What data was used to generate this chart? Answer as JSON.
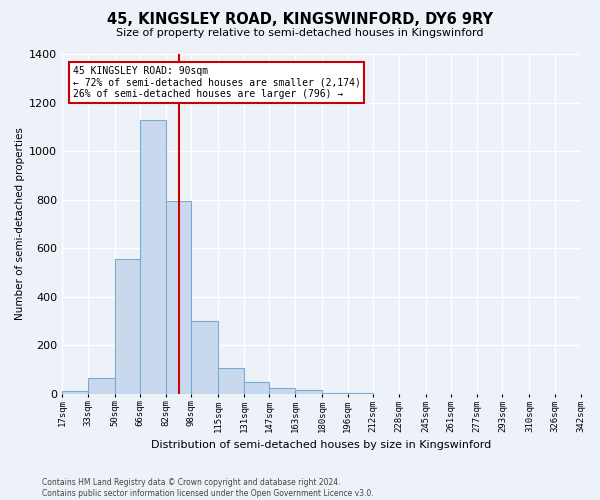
{
  "title": "45, KINGSLEY ROAD, KINGSWINFORD, DY6 9RY",
  "subtitle": "Size of property relative to semi-detached houses in Kingswinford",
  "xlabel": "Distribution of semi-detached houses by size in Kingswinford",
  "ylabel": "Number of semi-detached properties",
  "footer_line1": "Contains HM Land Registry data © Crown copyright and database right 2024.",
  "footer_line2": "Contains public sector information licensed under the Open Government Licence v3.0.",
  "annotation_title": "45 KINGSLEY ROAD: 90sqm",
  "annotation_line1": "← 72% of semi-detached houses are smaller (2,174)",
  "annotation_line2": "26% of semi-detached houses are larger (796) →",
  "property_size": 90,
  "bar_color": "#c8d9ee",
  "bar_edge_color": "#7aaad0",
  "vline_color": "#cc0000",
  "annotation_box_color": "#ffffff",
  "annotation_box_edge": "#cc0000",
  "background_color": "#edf2f9",
  "grid_color": "#ffffff",
  "bins": [
    17,
    33,
    50,
    66,
    82,
    98,
    115,
    131,
    147,
    163,
    180,
    196,
    212,
    228,
    245,
    261,
    277,
    293,
    310,
    326,
    342
  ],
  "counts": [
    10,
    65,
    555,
    1130,
    795,
    300,
    105,
    50,
    25,
    15,
    5,
    2,
    1,
    1,
    0,
    0,
    0,
    0,
    0,
    0
  ],
  "ylim": [
    0,
    1400
  ],
  "yticks": [
    0,
    200,
    400,
    600,
    800,
    1000,
    1200,
    1400
  ]
}
